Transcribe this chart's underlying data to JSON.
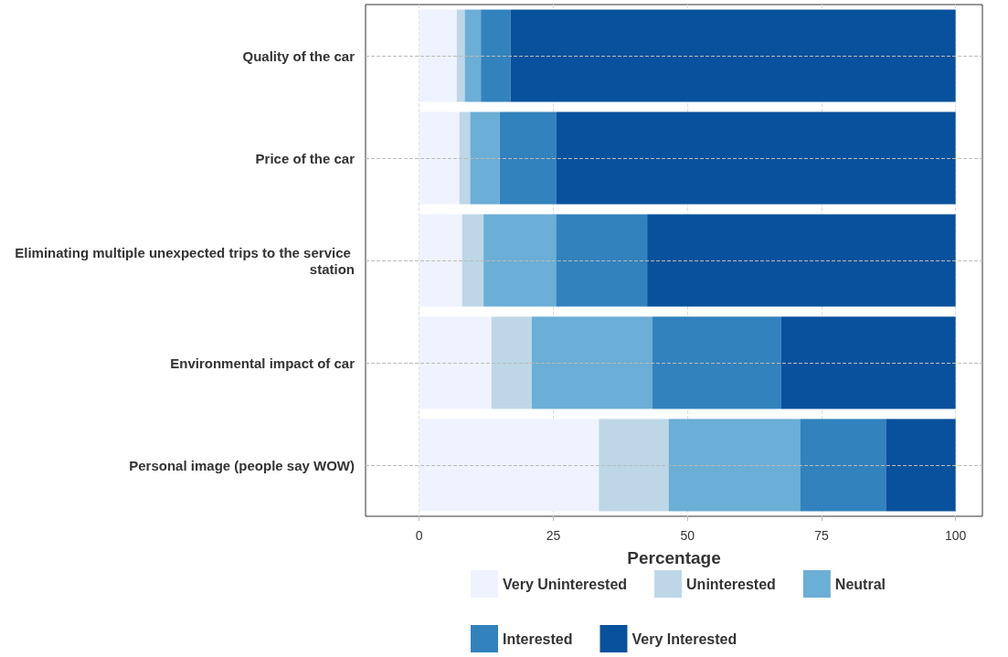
{
  "chart_data": {
    "type": "bar",
    "orientation": "horizontal",
    "stacked": true,
    "categories": [
      "Quality of the car",
      "Price of the car",
      "Eliminating multiple unexpected trips to the service station",
      "Environmental impact of car",
      "Personal image (people say WOW)"
    ],
    "series": [
      {
        "name": "Very Uninterested",
        "color": "#eff3ff",
        "values": [
          7,
          7.5,
          8,
          13.5,
          33.5
        ]
      },
      {
        "name": "Uninterested",
        "color": "#bdd7e7",
        "values": [
          1.5,
          2,
          4,
          7.5,
          13
        ]
      },
      {
        "name": "Neutral",
        "color": "#6baed6",
        "values": [
          3,
          5.5,
          13.5,
          22.5,
          24.5
        ]
      },
      {
        "name": "Interested",
        "color": "#3182bd",
        "values": [
          5.5,
          10.5,
          17,
          24,
          16
        ]
      },
      {
        "name": "Very Interested",
        "color": "#08519c",
        "values": [
          83,
          74.5,
          57.5,
          32.5,
          13
        ]
      }
    ],
    "xlabel": "Percentage",
    "xlim": [
      -10,
      105
    ],
    "xticks": [
      0,
      25,
      50,
      75,
      100
    ],
    "grid": true,
    "legend": "bottom"
  }
}
